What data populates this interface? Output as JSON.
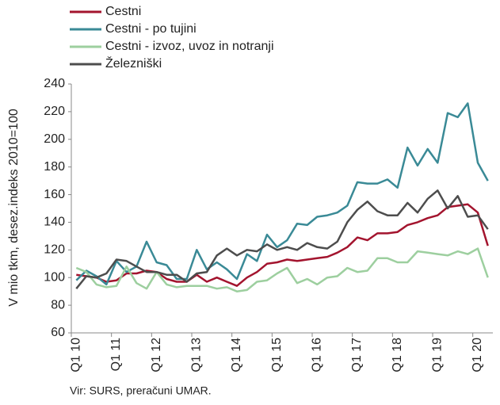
{
  "chart_data": {
    "type": "line",
    "y_label": "V mio tkm, desez.indeks 2010=100",
    "source": "Vir: SURS, preračuni UMAR.",
    "categories": [
      "Q1 10",
      null,
      null,
      null,
      "Q1 11",
      null,
      null,
      null,
      "Q1 12",
      null,
      null,
      null,
      "Q1 13",
      null,
      null,
      null,
      "Q1 14",
      null,
      null,
      null,
      "Q1 15",
      null,
      null,
      null,
      "Q1 16",
      null,
      null,
      null,
      "Q1 17",
      null,
      null,
      null,
      "Q1 18",
      null,
      null,
      null,
      "Q1 19",
      null,
      null,
      null,
      "Q1 20",
      null
    ],
    "series": [
      {
        "name": "Cestni",
        "color": "#a3142e",
        "values": [
          102,
          101,
          100,
          97,
          98,
          103,
          103,
          105,
          104,
          99,
          97,
          97,
          102,
          97,
          100,
          97,
          94,
          100,
          104,
          110,
          111,
          113,
          112,
          113,
          114,
          115,
          118,
          122,
          129,
          127,
          132,
          132,
          133,
          138,
          140,
          143,
          145,
          151,
          152,
          153,
          147,
          123
        ]
      },
      {
        "name": "Cestni - po tujini",
        "color": "#3a8a96",
        "values": [
          98,
          105,
          101,
          95,
          112,
          104,
          108,
          126,
          111,
          109,
          99,
          99,
          120,
          106,
          111,
          106,
          99,
          117,
          112,
          131,
          122,
          127,
          139,
          138,
          144,
          145,
          147,
          152,
          169,
          168,
          168,
          171,
          165,
          194,
          181,
          193,
          183,
          219,
          216,
          226,
          183,
          170
        ]
      },
      {
        "name": "Cestni - izvoz, uvoz in notranji",
        "color": "#9dcf9f",
        "values": [
          107,
          104,
          95,
          93,
          94,
          108,
          96,
          92,
          104,
          95,
          93,
          94,
          94,
          94,
          92,
          93,
          90,
          91,
          97,
          98,
          103,
          107,
          96,
          99,
          95,
          100,
          101,
          107,
          104,
          105,
          114,
          114,
          111,
          111,
          119,
          118,
          117,
          116,
          119,
          117,
          121,
          100
        ]
      },
      {
        "name": "Železniški",
        "color": "#4d4d4d",
        "values": [
          92,
          101,
          100,
          103,
          113,
          112,
          108,
          104,
          104,
          102,
          102,
          97,
          103,
          104,
          116,
          121,
          116,
          120,
          119,
          124,
          120,
          122,
          120,
          125,
          122,
          121,
          126,
          140,
          149,
          155,
          148,
          145,
          145,
          154,
          147,
          157,
          163,
          150,
          159,
          144,
          145,
          135
        ]
      }
    ],
    "ylim": [
      60,
      240
    ],
    "yticks": [
      60,
      80,
      100,
      120,
      140,
      160,
      180,
      200,
      220,
      240
    ],
    "grid": false
  }
}
